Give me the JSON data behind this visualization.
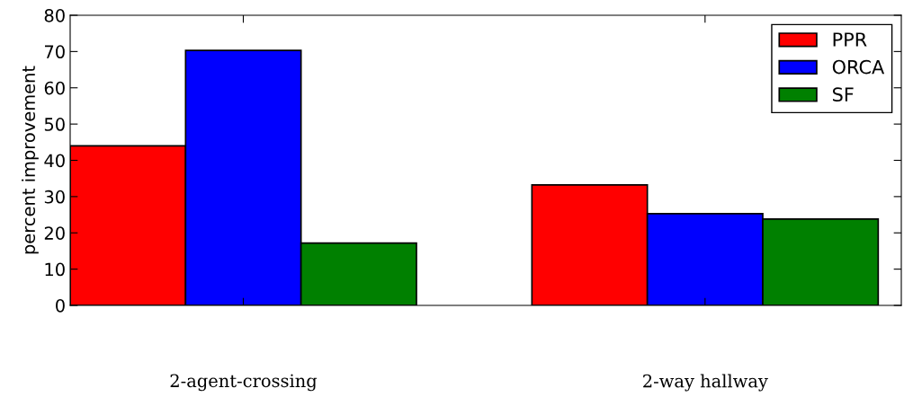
{
  "chart_data": {
    "type": "bar",
    "ylabel": "percent improvement",
    "categories": [
      "2-agent-crossing",
      "2-way hallway"
    ],
    "series": [
      {
        "name": "PPR",
        "color": "#ff0000",
        "values": [
          44,
          33.2
        ]
      },
      {
        "name": "ORCA",
        "color": "#0000ff",
        "values": [
          70.3,
          25.3
        ]
      },
      {
        "name": "SF",
        "color": "#008000",
        "values": [
          17.2,
          23.8
        ]
      }
    ],
    "ylim": [
      0,
      80
    ],
    "yticks": [
      0,
      10,
      20,
      30,
      40,
      50,
      60,
      70,
      80
    ],
    "grid": false,
    "legend": "top right"
  }
}
